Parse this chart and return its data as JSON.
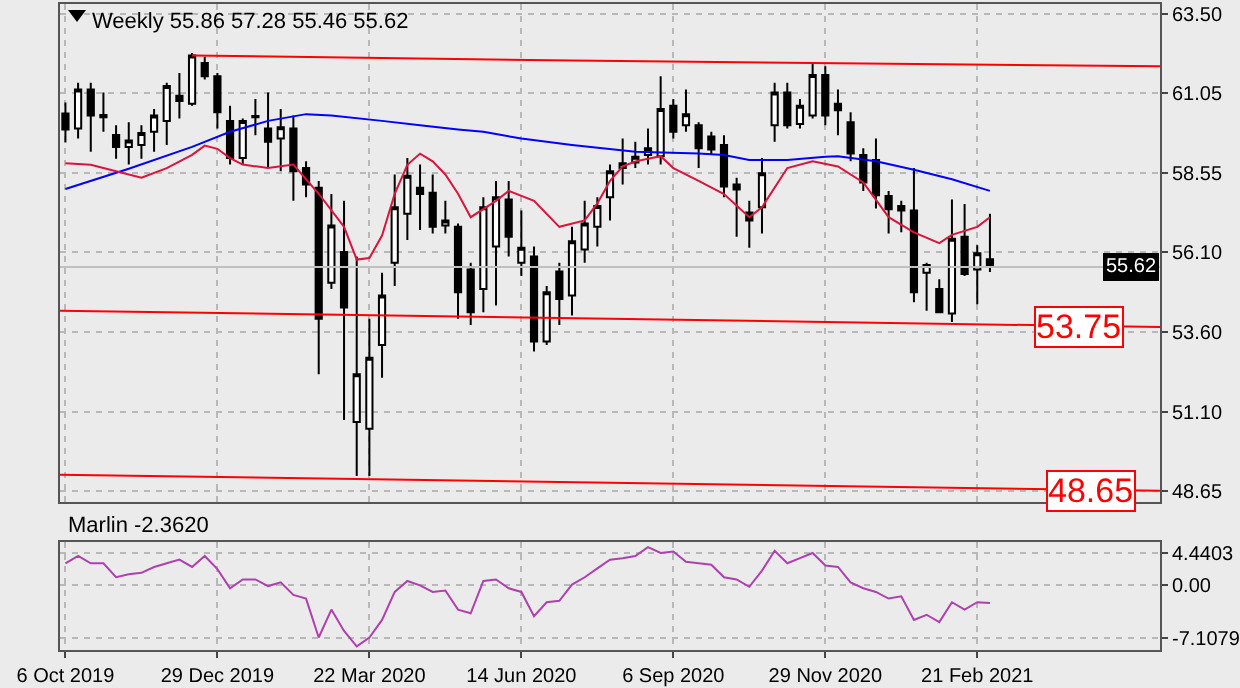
{
  "chart_data": [
    {
      "type": "candlestick",
      "title": "Weekly 55.86 57.28 55.46 55.62",
      "x": [
        "2019-10-06",
        "2019-10-13",
        "2019-10-20",
        "2019-10-27",
        "2019-11-03",
        "2019-11-10",
        "2019-11-17",
        "2019-11-24",
        "2019-12-01",
        "2019-12-08",
        "2019-12-15",
        "2019-12-22",
        "2019-12-29",
        "2020-01-05",
        "2020-01-12",
        "2020-01-19",
        "2020-01-26",
        "2020-02-02",
        "2020-02-09",
        "2020-02-16",
        "2020-02-23",
        "2020-03-01",
        "2020-03-08",
        "2020-03-15",
        "2020-03-22",
        "2020-03-29",
        "2020-04-05",
        "2020-04-12",
        "2020-04-19",
        "2020-04-26",
        "2020-05-03",
        "2020-05-10",
        "2020-05-17",
        "2020-05-24",
        "2020-05-31",
        "2020-06-07",
        "2020-06-14",
        "2020-06-21",
        "2020-06-28",
        "2020-07-05",
        "2020-07-12",
        "2020-07-19",
        "2020-07-26",
        "2020-08-02",
        "2020-08-09",
        "2020-08-16",
        "2020-08-23",
        "2020-08-30",
        "2020-09-06",
        "2020-09-13",
        "2020-09-20",
        "2020-09-27",
        "2020-10-04",
        "2020-10-11",
        "2020-10-18",
        "2020-10-25",
        "2020-11-01",
        "2020-11-08",
        "2020-11-15",
        "2020-11-22",
        "2020-11-29",
        "2020-12-06",
        "2020-12-13",
        "2020-12-20",
        "2020-12-27",
        "2021-01-03",
        "2021-01-10",
        "2021-01-17",
        "2021-01-24",
        "2021-01-31",
        "2021-02-07",
        "2021-02-14",
        "2021-02-21",
        "2021-02-28"
      ],
      "ohlc": [
        [
          60.4,
          60.74,
          59.5,
          59.9
        ],
        [
          59.93,
          61.36,
          59.62,
          61.15
        ],
        [
          61.15,
          61.36,
          59.21,
          60.34
        ],
        [
          60.35,
          61.05,
          59.83,
          60.28
        ],
        [
          59.73,
          60.03,
          58.99,
          59.36
        ],
        [
          59.36,
          60.13,
          58.81,
          59.56
        ],
        [
          59.42,
          60.03,
          58.99,
          59.79
        ],
        [
          59.83,
          60.54,
          59.21,
          60.34
        ],
        [
          60.17,
          61.36,
          59.42,
          61.26
        ],
        [
          60.95,
          61.66,
          60.24,
          60.79
        ],
        [
          60.7,
          62.28,
          60.64,
          62.21
        ],
        [
          61.97,
          62.17,
          61.46,
          61.56
        ],
        [
          61.56,
          61.66,
          59.93,
          60.44
        ],
        [
          60.17,
          60.64,
          58.81,
          59.01
        ],
        [
          59.01,
          60.24,
          58.81,
          60.17
        ],
        [
          60.28,
          60.85,
          59.72,
          60.32
        ],
        [
          59.93,
          61.05,
          58.7,
          59.52
        ],
        [
          59.62,
          60.54,
          58.6,
          59.97
        ],
        [
          59.93,
          60.34,
          57.68,
          58.6
        ],
        [
          58.7,
          58.91,
          57.79,
          58.19
        ],
        [
          58.09,
          58.3,
          52.28,
          54.01
        ],
        [
          55.13,
          57.89,
          54.93,
          56.91
        ],
        [
          56.09,
          57.68,
          50.85,
          54.36
        ],
        [
          50.79,
          55.95,
          49.11,
          52.28
        ],
        [
          50.58,
          54.01,
          49.11,
          52.79
        ],
        [
          53.19,
          55.44,
          52.17,
          54.73
        ],
        [
          55.75,
          58.5,
          55.03,
          57.48
        ],
        [
          57.28,
          59.01,
          56.46,
          58.46
        ],
        [
          58.09,
          58.81,
          56.77,
          57.89
        ],
        [
          57.93,
          58.5,
          56.66,
          56.87
        ],
        [
          56.91,
          57.68,
          56.66,
          57.07
        ],
        [
          56.87,
          56.97,
          54.01,
          54.83
        ],
        [
          55.54,
          55.75,
          53.81,
          54.21
        ],
        [
          54.93,
          57.79,
          54.21,
          57.48
        ],
        [
          56.26,
          58.3,
          54.42,
          57.79
        ],
        [
          57.72,
          58.3,
          55.95,
          56.56
        ],
        [
          55.75,
          57.38,
          55.34,
          56.22
        ],
        [
          55.95,
          56.26,
          52.99,
          53.3
        ],
        [
          53.3,
          55.03,
          53.19,
          54.83
        ],
        [
          55.48,
          55.75,
          53.81,
          54.62
        ],
        [
          54.73,
          56.87,
          54.11,
          56.42
        ],
        [
          56.16,
          57.68,
          55.75,
          56.97
        ],
        [
          56.87,
          57.79,
          56.26,
          57.52
        ],
        [
          57.79,
          58.81,
          57.07,
          58.6
        ],
        [
          58.7,
          59.62,
          58.19,
          58.85
        ],
        [
          58.87,
          59.52,
          58.7,
          59.05
        ],
        [
          59.11,
          59.93,
          58.81,
          59.32
        ],
        [
          59.07,
          61.56,
          58.81,
          60.54
        ],
        [
          60.64,
          60.85,
          59.62,
          59.83
        ],
        [
          60.03,
          61.15,
          59.83,
          60.38
        ],
        [
          60.03,
          60.13,
          58.7,
          59.32
        ],
        [
          59.68,
          59.83,
          59.11,
          59.28
        ],
        [
          59.42,
          59.72,
          57.79,
          58.13
        ],
        [
          58.19,
          58.4,
          56.56,
          58.03
        ],
        [
          57.32,
          57.68,
          56.22,
          57.07
        ],
        [
          57.48,
          59.01,
          56.66,
          58.54
        ],
        [
          60.03,
          61.36,
          59.52,
          61.05
        ],
        [
          61.05,
          61.36,
          59.93,
          60.03
        ],
        [
          60.07,
          60.85,
          59.93,
          60.64
        ],
        [
          60.34,
          61.97,
          60.24,
          61.6
        ],
        [
          61.6,
          61.87,
          60.03,
          60.34
        ],
        [
          60.7,
          61.15,
          59.72,
          60.5
        ],
        [
          60.13,
          60.44,
          58.91,
          59.15
        ],
        [
          59.11,
          59.32,
          57.99,
          58.25
        ],
        [
          58.95,
          59.62,
          57.44,
          57.85
        ],
        [
          57.83,
          57.99,
          56.66,
          57.42
        ],
        [
          57.52,
          57.68,
          56.7,
          57.38
        ],
        [
          57.38,
          58.7,
          54.52,
          54.83
        ],
        [
          55.44,
          55.75,
          54.26,
          55.68
        ],
        [
          54.93,
          55.24,
          54.21,
          54.21
        ],
        [
          54.17,
          57.72,
          53.91,
          56.5
        ],
        [
          56.56,
          57.58,
          55.34,
          55.4
        ],
        [
          55.54,
          56.3,
          54.46,
          56.05
        ],
        [
          55.86,
          57.28,
          55.46,
          55.62
        ]
      ],
      "series": [
        {
          "type": "line",
          "color": "#0000ff",
          "x": [
            "2019-10-06",
            "2019-11-10",
            "2019-12-15",
            "2020-01-05",
            "2020-01-26",
            "2020-02-16",
            "2020-03-01",
            "2020-03-29",
            "2020-04-19",
            "2020-05-10",
            "2020-05-24",
            "2020-06-14",
            "2020-07-12",
            "2020-08-16",
            "2020-09-20",
            "2020-10-04",
            "2020-10-18",
            "2020-11-08",
            "2020-11-29",
            "2020-12-06",
            "2020-12-27",
            "2021-01-17",
            "2021-02-07",
            "2021-02-28"
          ],
          "values": [
            58.05,
            58.68,
            59.36,
            59.83,
            60.17,
            60.38,
            60.34,
            60.17,
            60.03,
            59.9,
            59.83,
            59.62,
            59.42,
            59.21,
            59.15,
            59.11,
            58.95,
            58.95,
            59.05,
            59.07,
            58.91,
            58.65,
            58.35,
            57.99
          ]
        },
        {
          "type": "line",
          "color": "#dc143c",
          "x": [
            "2019-10-06",
            "2019-10-20",
            "2019-11-03",
            "2019-11-17",
            "2019-12-01",
            "2019-12-15",
            "2019-12-22",
            "2019-12-29",
            "2020-01-05",
            "2020-01-12",
            "2020-01-26",
            "2020-02-09",
            "2020-02-23",
            "2020-03-08",
            "2020-03-15",
            "2020-03-22",
            "2020-03-29",
            "2020-04-05",
            "2020-04-12",
            "2020-04-19",
            "2020-04-26",
            "2020-05-03",
            "2020-05-10",
            "2020-05-17",
            "2020-05-31",
            "2020-06-07",
            "2020-06-21",
            "2020-07-05",
            "2020-07-19",
            "2020-07-26",
            "2020-08-02",
            "2020-08-09",
            "2020-08-16",
            "2020-08-30",
            "2020-09-06",
            "2020-09-20",
            "2020-10-04",
            "2020-10-18",
            "2020-10-25",
            "2020-11-08",
            "2020-11-22",
            "2020-12-06",
            "2020-12-20",
            "2021-01-03",
            "2021-01-17",
            "2021-01-31",
            "2021-02-07",
            "2021-02-21",
            "2021-02-28"
          ],
          "values": [
            58.85,
            58.8,
            58.6,
            58.4,
            58.7,
            59.11,
            59.4,
            59.3,
            59.01,
            58.81,
            58.7,
            58.81,
            57.9,
            56.87,
            55.85,
            55.9,
            56.6,
            57.9,
            58.8,
            59.15,
            58.91,
            58.5,
            57.9,
            57.17,
            57.68,
            57.99,
            57.68,
            56.87,
            57.07,
            57.6,
            58.3,
            58.75,
            58.91,
            59.07,
            58.7,
            58.3,
            57.89,
            57.17,
            57.48,
            58.7,
            58.91,
            58.75,
            58.25,
            57.17,
            56.7,
            56.36,
            56.62,
            56.87,
            57.17
          ]
        },
        {
          "type": "line",
          "color": "#ff0000",
          "x": [
            "2019-12-15",
            "2020-07-12",
            "2021-06-02"
          ],
          "values": [
            62.21,
            62.05,
            61.87
          ]
        },
        {
          "type": "line",
          "color": "#ff0000",
          "x": [
            "2019-10-03",
            "2021-06-02"
          ],
          "values": [
            54.26,
            53.75
          ]
        },
        {
          "type": "line",
          "color": "#ff0000",
          "x": [
            "2019-10-03",
            "2021-06-02"
          ],
          "values": [
            49.15,
            48.65
          ]
        }
      ],
      "ref_lines": [
        {
          "axis": "y",
          "value": 55.62,
          "label": "55.62",
          "color": "#c0c0c0"
        }
      ],
      "annotations": [
        {
          "text": "53.75",
          "x": "2021-04-18",
          "y": 53.75
        },
        {
          "text": "48.65",
          "x": "2021-04-25",
          "y": 48.65
        }
      ],
      "xlim": [
        "2019-10-03",
        "2021-06-02"
      ],
      "xticks": [
        {
          "value": "2019-10-06",
          "label": null
        },
        {
          "value": "2019-12-29",
          "label": null
        },
        {
          "value": "2020-03-22",
          "label": null
        },
        {
          "value": "2020-06-14",
          "label": null
        },
        {
          "value": "2020-09-06",
          "label": null
        },
        {
          "value": "2020-11-29",
          "label": null
        },
        {
          "value": "2021-02-21",
          "label": null
        }
      ],
      "ylim": [
        48.3,
        63.81
      ],
      "yticks": [
        {
          "value": 63.5,
          "label": "63.50"
        },
        61.05,
        58.55,
        {
          "value": 56.1,
          "label": "56.10"
        },
        {
          "value": 53.6,
          "label": "53.60"
        },
        {
          "value": 51.1,
          "label": "51.10"
        },
        48.65
      ],
      "grid": true,
      "tick_labels": "y"
    },
    {
      "type": "line",
      "title": "Marlin -2.3620",
      "x": [
        "2019-10-06",
        "2019-10-13",
        "2019-10-20",
        "2019-10-27",
        "2019-11-03",
        "2019-11-10",
        "2019-11-17",
        "2019-11-24",
        "2019-12-01",
        "2019-12-08",
        "2019-12-15",
        "2019-12-22",
        "2019-12-29",
        "2020-01-05",
        "2020-01-12",
        "2020-01-19",
        "2020-01-26",
        "2020-02-02",
        "2020-02-09",
        "2020-02-16",
        "2020-02-23",
        "2020-03-01",
        "2020-03-08",
        "2020-03-15",
        "2020-03-22",
        "2020-03-29",
        "2020-04-05",
        "2020-04-12",
        "2020-04-19",
        "2020-04-26",
        "2020-05-03",
        "2020-05-10",
        "2020-05-17",
        "2020-05-24",
        "2020-05-31",
        "2020-06-07",
        "2020-06-14",
        "2020-06-21",
        "2020-06-28",
        "2020-07-05",
        "2020-07-12",
        "2020-07-19",
        "2020-07-26",
        "2020-08-02",
        "2020-08-09",
        "2020-08-16",
        "2020-08-23",
        "2020-08-30",
        "2020-09-06",
        "2020-09-13",
        "2020-09-20",
        "2020-09-27",
        "2020-10-04",
        "2020-10-11",
        "2020-10-18",
        "2020-10-25",
        "2020-11-01",
        "2020-11-08",
        "2020-11-15",
        "2020-11-22",
        "2020-11-29",
        "2020-12-06",
        "2020-12-13",
        "2020-12-20",
        "2020-12-27",
        "2021-01-03",
        "2021-01-10",
        "2021-01-17",
        "2021-01-24",
        "2021-01-31",
        "2021-02-07",
        "2021-02-14",
        "2021-02-21",
        "2021-02-28"
      ],
      "series": [
        {
          "color": "#b040b0",
          "values": [
            3.0,
            4.0,
            3.0,
            3.0,
            1.1,
            1.5,
            1.7,
            2.5,
            3.0,
            3.5,
            2.5,
            4.0,
            2.2,
            -0.4,
            0.8,
            0.8,
            -0.1,
            0.4,
            -1.3,
            -1.8,
            -7.1,
            -3.3,
            -6.2,
            -8.3,
            -7.1,
            -4.7,
            -0.9,
            0.6,
            0.0,
            -0.9,
            -0.7,
            -3.3,
            -3.8,
            0.6,
            0.8,
            -0.4,
            -0.9,
            -4.2,
            -2.3,
            -2.1,
            0.1,
            1.1,
            2.3,
            3.5,
            3.7,
            4.0,
            5.2,
            4.4,
            4.6,
            3.2,
            3.0,
            2.8,
            1.1,
            0.8,
            -0.2,
            2.0,
            4.7,
            3.0,
            3.7,
            4.4,
            2.7,
            2.5,
            0.4,
            -0.4,
            -0.9,
            -1.8,
            -1.5,
            -4.7,
            -4.0,
            -5.0,
            -2.3,
            -3.3,
            -2.3,
            -2.4
          ]
        }
      ],
      "xlim": [
        "2019-10-03",
        "2021-06-02"
      ],
      "xticks": [
        {
          "value": "2019-10-06",
          "label": "6 Oct 2019"
        },
        {
          "value": "2019-12-29",
          "label": "29 Dec 2019"
        },
        {
          "value": "2020-03-22",
          "label": "22 Mar 2020"
        },
        {
          "value": "2020-06-14",
          "label": "14 Jun 2020"
        },
        {
          "value": "2020-09-06",
          "label": "6 Sep 2020"
        },
        {
          "value": "2020-11-29",
          "label": "29 Nov 2020"
        },
        {
          "value": "2021-02-21",
          "label": "21 Feb 2021"
        }
      ],
      "ylim": [
        -8.8,
        5.9
      ],
      "yticks": [
        4.4403,
        {
          "value": 0,
          "label": "0.00"
        },
        -7.1079
      ],
      "grid": true
    }
  ]
}
